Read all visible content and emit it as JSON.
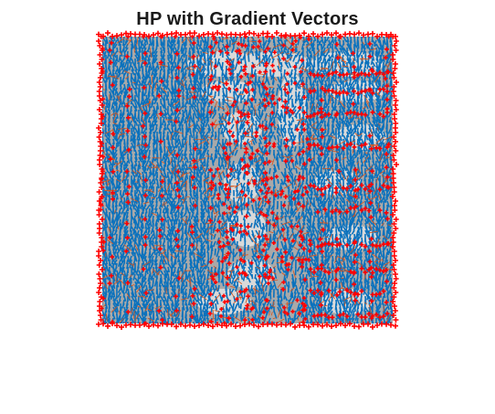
{
  "figure": {
    "title": "HP with Gradient Vectors"
  },
  "colors": {
    "background_gray": "#a9a9a9",
    "light_patch": "#d9d9d9",
    "vector_blue": "#0b72bd",
    "vector_orange": "#d95319",
    "point_red": "#ff0000"
  }
}
